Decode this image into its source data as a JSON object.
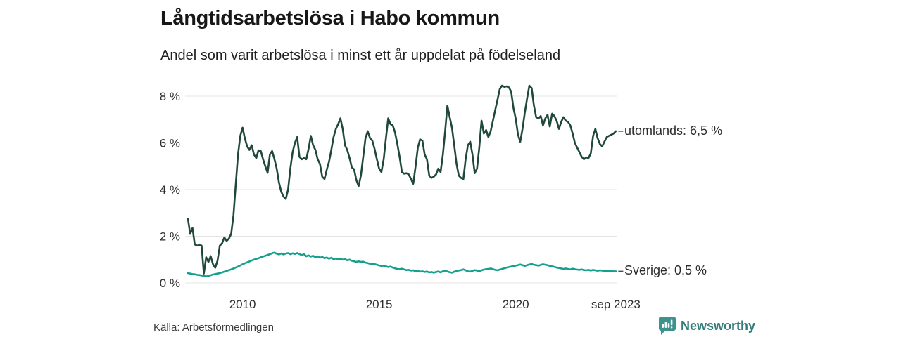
{
  "header": {
    "title": "Långtidsarbetslösa i Habo kommun",
    "subtitle": "Andel som varit arbetslösa i minst ett år uppdelat på födelseland"
  },
  "footer": {
    "source": "Källa: Arbetsförmedlingen",
    "brand": "Newsworthy"
  },
  "branding": {
    "name": "Newsworthy",
    "logo_color": "#3d928d",
    "text_color": "#337e7a"
  },
  "chart_data": {
    "type": "line",
    "title": "Långtidsarbetslösa i Habo kommun",
    "subtitle": "Andel som varit arbetslösa i minst ett år uppdelat på födelseland",
    "source": "Källa: Arbetsförmedlingen",
    "unit": "%",
    "x_start_month": "2008-01",
    "x_end_month": "2023-09",
    "x_ticks": [
      {
        "label": "2010",
        "month_index": 24
      },
      {
        "label": "2015",
        "month_index": 84
      },
      {
        "label": "2020",
        "month_index": 144
      },
      {
        "label": "sep 2023",
        "month_index": 188
      }
    ],
    "y_ticks": [
      {
        "label": "0 %",
        "value": 0
      },
      {
        "label": "2 %",
        "value": 2
      },
      {
        "label": "4 %",
        "value": 4
      },
      {
        "label": "6 %",
        "value": 6
      },
      {
        "label": "8 %",
        "value": 8
      }
    ],
    "ylim": [
      0,
      8.6
    ],
    "grid": "horizontal-only",
    "legend_position": "line-end-labels",
    "colors": {
      "grid": "#e4e4e4",
      "tick_text": "#2e2e2e",
      "connector": "#4d4d4d"
    },
    "series": [
      {
        "name": "utomlands",
        "end_label": "utomlands: 6,5 %",
        "last_value_label": "6,5 %",
        "color": "#20493c",
        "values": [
          2.75,
          2.1,
          2.35,
          1.65,
          1.6,
          1.62,
          1.6,
          0.4,
          1.1,
          0.9,
          1.15,
          0.8,
          0.65,
          0.95,
          1.6,
          1.7,
          1.95,
          1.8,
          1.9,
          2.1,
          2.9,
          4.2,
          5.5,
          6.3,
          6.65,
          6.2,
          5.85,
          5.7,
          5.9,
          5.5,
          5.35,
          5.68,
          5.65,
          5.3,
          5.0,
          4.72,
          5.5,
          5.65,
          5.3,
          4.9,
          4.3,
          3.9,
          3.7,
          3.6,
          4.0,
          4.9,
          5.6,
          6.0,
          6.25,
          5.4,
          5.3,
          5.35,
          5.3,
          5.75,
          6.3,
          5.9,
          5.7,
          5.3,
          5.1,
          4.55,
          4.45,
          4.85,
          5.2,
          5.7,
          6.25,
          6.6,
          6.8,
          7.05,
          6.6,
          5.9,
          5.7,
          5.35,
          4.95,
          4.87,
          4.4,
          4.15,
          4.6,
          5.4,
          6.2,
          6.5,
          6.2,
          6.1,
          5.75,
          5.3,
          4.9,
          4.75,
          5.3,
          6.2,
          7.05,
          6.8,
          6.75,
          6.45,
          5.95,
          5.4,
          4.75,
          4.68,
          4.7,
          4.65,
          4.45,
          4.25,
          5.0,
          5.8,
          6.15,
          6.1,
          5.5,
          5.3,
          4.6,
          4.5,
          4.55,
          4.65,
          4.9,
          4.75,
          5.5,
          6.5,
          7.6,
          7.1,
          6.65,
          5.9,
          5.1,
          4.6,
          4.5,
          4.45,
          5.3,
          5.9,
          6.05,
          5.5,
          4.7,
          4.9,
          5.8,
          6.95,
          6.4,
          6.55,
          6.25,
          6.5,
          6.95,
          7.4,
          7.85,
          8.3,
          8.45,
          8.4,
          8.42,
          8.38,
          8.2,
          7.5,
          7.05,
          6.35,
          6.05,
          6.6,
          7.3,
          7.9,
          8.45,
          8.35,
          7.6,
          7.1,
          7.05,
          7.15,
          6.75,
          7.05,
          7.2,
          6.7,
          7.25,
          7.15,
          6.95,
          6.6,
          6.9,
          7.1,
          6.95,
          6.9,
          6.75,
          6.4,
          6.0,
          5.8,
          5.6,
          5.4,
          5.3,
          5.38,
          5.35,
          5.55,
          6.3,
          6.6,
          6.2,
          5.95,
          5.85,
          6.05,
          6.25,
          6.3,
          6.35,
          6.4,
          6.5
        ]
      },
      {
        "name": "Sverige",
        "end_label": "Sverige: 0,5 %",
        "last_value_label": "0,5 %",
        "color": "#14a08c",
        "values": [
          0.42,
          0.4,
          0.38,
          0.37,
          0.35,
          0.34,
          0.32,
          0.3,
          0.28,
          0.3,
          0.33,
          0.36,
          0.38,
          0.4,
          0.42,
          0.45,
          0.48,
          0.51,
          0.55,
          0.58,
          0.62,
          0.66,
          0.7,
          0.75,
          0.8,
          0.84,
          0.88,
          0.92,
          0.96,
          1.0,
          1.03,
          1.06,
          1.1,
          1.13,
          1.16,
          1.2,
          1.23,
          1.27,
          1.3,
          1.25,
          1.22,
          1.26,
          1.22,
          1.26,
          1.28,
          1.23,
          1.27,
          1.24,
          1.28,
          1.24,
          1.19,
          1.24,
          1.14,
          1.18,
          1.13,
          1.16,
          1.1,
          1.14,
          1.08,
          1.12,
          1.06,
          1.09,
          1.04,
          1.08,
          1.02,
          1.05,
          1.01,
          1.04,
          1.0,
          1.02,
          0.97,
          1.0,
          0.95,
          0.93,
          0.9,
          0.93,
          0.9,
          0.91,
          0.87,
          0.85,
          0.82,
          0.8,
          0.81,
          0.78,
          0.75,
          0.73,
          0.74,
          0.71,
          0.68,
          0.7,
          0.66,
          0.63,
          0.6,
          0.59,
          0.61,
          0.58,
          0.55,
          0.56,
          0.53,
          0.54,
          0.5,
          0.52,
          0.48,
          0.5,
          0.47,
          0.49,
          0.45,
          0.47,
          0.44,
          0.47,
          0.49,
          0.45,
          0.5,
          0.53,
          0.49,
          0.46,
          0.44,
          0.48,
          0.51,
          0.53,
          0.55,
          0.58,
          0.54,
          0.5,
          0.48,
          0.52,
          0.55,
          0.53,
          0.5,
          0.54,
          0.57,
          0.59,
          0.6,
          0.62,
          0.59,
          0.56,
          0.54,
          0.57,
          0.6,
          0.63,
          0.66,
          0.68,
          0.7,
          0.72,
          0.74,
          0.76,
          0.79,
          0.76,
          0.73,
          0.76,
          0.79,
          0.81,
          0.78,
          0.76,
          0.74,
          0.77,
          0.8,
          0.78,
          0.76,
          0.73,
          0.71,
          0.69,
          0.66,
          0.64,
          0.62,
          0.6,
          0.62,
          0.6,
          0.58,
          0.61,
          0.59,
          0.57,
          0.56,
          0.58,
          0.55,
          0.54,
          0.56,
          0.53,
          0.56,
          0.54,
          0.52,
          0.54,
          0.53,
          0.51,
          0.52,
          0.5,
          0.51,
          0.5,
          0.5
        ]
      }
    ]
  }
}
